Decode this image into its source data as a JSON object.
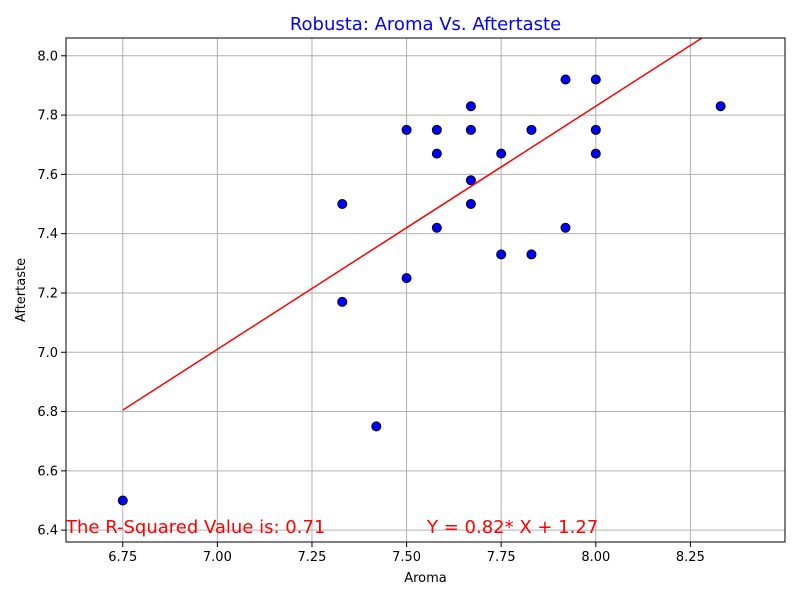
{
  "chart_data": {
    "type": "scatter",
    "title": "Robusta: Aroma Vs. Aftertaste",
    "xlabel": "Aroma",
    "ylabel": "Aftertaste",
    "xlim": [
      6.6,
      8.5
    ],
    "ylim": [
      6.36,
      8.06
    ],
    "grid": true,
    "x_ticks": [
      6.75,
      7.0,
      7.25,
      7.5,
      7.75,
      8.0,
      8.25
    ],
    "x_tick_labels": [
      "6.75",
      "7.00",
      "7.25",
      "7.50",
      "7.75",
      "8.00",
      "8.25"
    ],
    "y_ticks": [
      6.4,
      6.6,
      6.8,
      7.0,
      7.2,
      7.4,
      7.6,
      7.8,
      8.0
    ],
    "y_tick_labels": [
      "6.4",
      "6.6",
      "6.8",
      "7.0",
      "7.2",
      "7.4",
      "7.6",
      "7.8",
      "8.0"
    ],
    "points": [
      {
        "x": 6.75,
        "y": 6.5
      },
      {
        "x": 7.33,
        "y": 7.5
      },
      {
        "x": 7.33,
        "y": 7.17
      },
      {
        "x": 7.42,
        "y": 6.75
      },
      {
        "x": 7.5,
        "y": 7.75
      },
      {
        "x": 7.5,
        "y": 7.25
      },
      {
        "x": 7.58,
        "y": 7.75
      },
      {
        "x": 7.58,
        "y": 7.67
      },
      {
        "x": 7.58,
        "y": 7.42
      },
      {
        "x": 7.67,
        "y": 7.83
      },
      {
        "x": 7.67,
        "y": 7.75
      },
      {
        "x": 7.67,
        "y": 7.58
      },
      {
        "x": 7.67,
        "y": 7.5
      },
      {
        "x": 7.75,
        "y": 7.67
      },
      {
        "x": 7.75,
        "y": 7.33
      },
      {
        "x": 7.83,
        "y": 7.75
      },
      {
        "x": 7.83,
        "y": 7.33
      },
      {
        "x": 7.92,
        "y": 7.92
      },
      {
        "x": 7.92,
        "y": 7.42
      },
      {
        "x": 8.0,
        "y": 7.92
      },
      {
        "x": 8.0,
        "y": 7.75
      },
      {
        "x": 8.0,
        "y": 7.67
      },
      {
        "x": 8.33,
        "y": 7.83
      }
    ],
    "regression": {
      "slope": 0.82,
      "intercept": 1.27,
      "x_start": 6.75,
      "x_end": 8.33
    },
    "annotations": {
      "r_squared": "The R-Squared Value is: 0.71",
      "equation": "Y = 0.82* X + 1.27"
    },
    "colors": {
      "title": "#0000ff",
      "marker_fill": "#0000ff",
      "marker_edge": "#000000",
      "regression_line": "#ff0000",
      "annotation": "#ff0000",
      "grid": "#b0b0b0"
    }
  }
}
